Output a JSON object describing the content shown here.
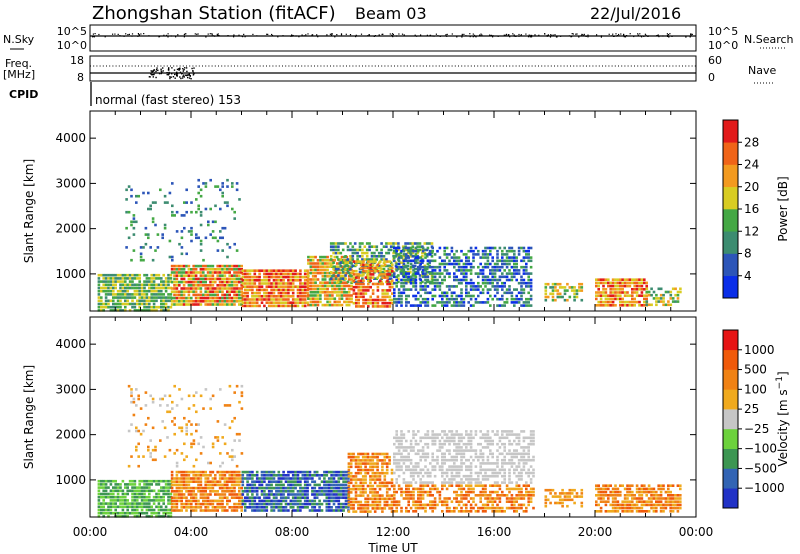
{
  "header": {
    "station": "Zhongshan Station (fitACF)",
    "beam": "Beam 03",
    "date": "22/Jul/2016"
  },
  "status_panels": {
    "nsky_label": "N.Sky",
    "nsky_ticks": [
      "10^5",
      "10^0"
    ],
    "nsearch_label": "N.Search",
    "nsearch_ticks": [
      "10^5",
      "10^0"
    ],
    "freq_label": "Freq.",
    "freq_unit": "[MHz]",
    "freq_ticks": [
      "18",
      "8"
    ],
    "nave_label": "Nave",
    "nave_ticks": [
      "60",
      "0"
    ],
    "cpid_label": "CPID",
    "cpid_text": "normal (fast stereo) 153"
  },
  "chart_data": [
    {
      "type": "heatmap",
      "name": "power",
      "ylabel": "Slant Range [km]",
      "yticks": [
        "4000",
        "3000",
        "2000",
        "1000"
      ],
      "ylim": [
        180,
        4600
      ],
      "colorbar_label": "Power [dB]",
      "colorbar_ticks": [
        "28",
        "24",
        "20",
        "16",
        "12",
        "8",
        "4"
      ],
      "colors": [
        "#0a2ee8",
        "#2c55b8",
        "#3c8c70",
        "#44a844",
        "#d8cc22",
        "#f39a1f",
        "#f06418",
        "#e21a1a"
      ],
      "scatter_regions": [
        {
          "x": [
            0.3,
            3.2
          ],
          "y": [
            200,
            1000
          ],
          "level": [
            2,
            4
          ],
          "density": 0.85
        },
        {
          "x": [
            3.2,
            6.0
          ],
          "y": [
            300,
            1200
          ],
          "level": [
            3,
            7
          ],
          "density": 0.9
        },
        {
          "x": [
            6.0,
            8.6
          ],
          "y": [
            300,
            1100
          ],
          "level": [
            4,
            7
          ],
          "density": 0.9
        },
        {
          "x": [
            8.6,
            10.4
          ],
          "y": [
            300,
            1400
          ],
          "level": [
            3,
            6
          ],
          "density": 0.85
        },
        {
          "x": [
            9.5,
            13.5
          ],
          "y": [
            800,
            1700
          ],
          "level": [
            1,
            4
          ],
          "density": 0.6
        },
        {
          "x": [
            10.4,
            12.0
          ],
          "y": [
            300,
            1300
          ],
          "level": [
            4,
            7
          ],
          "density": 0.7
        },
        {
          "x": [
            12.0,
            17.5
          ],
          "y": [
            300,
            1600
          ],
          "level": [
            0,
            3
          ],
          "density": 0.6
        },
        {
          "x": [
            18.0,
            19.5
          ],
          "y": [
            400,
            800
          ],
          "level": [
            2,
            5
          ],
          "density": 0.6
        },
        {
          "x": [
            20.0,
            22.0
          ],
          "y": [
            300,
            900
          ],
          "level": [
            4,
            7
          ],
          "density": 0.85
        },
        {
          "x": [
            22.0,
            23.4
          ],
          "y": [
            300,
            700
          ],
          "level": [
            2,
            5
          ],
          "density": 0.5
        },
        {
          "x": [
            1.4,
            6.0
          ],
          "y": [
            1300,
            3100
          ],
          "level": [
            1,
            3
          ],
          "density": 0.12
        }
      ]
    },
    {
      "type": "heatmap",
      "name": "velocity",
      "ylabel": "Slant Range [km]",
      "yticks": [
        "4000",
        "3000",
        "2000",
        "1000"
      ],
      "ylim": [
        180,
        4600
      ],
      "colorbar_label": "Velocity [m s^-1]",
      "colorbar_ticks": [
        "1000",
        "500",
        "100",
        "25",
        "−25",
        "−100",
        "−500",
        "−1000"
      ],
      "colors": [
        "#2132c6",
        "#3264b4",
        "#3c9652",
        "#6cd23c",
        "#c6c6c6",
        "#f0aa1e",
        "#f08214",
        "#f05a0a",
        "#e61414"
      ],
      "scatter_regions": [
        {
          "x": [
            0.3,
            3.2
          ],
          "y": [
            200,
            1000
          ],
          "level": [
            2,
            3
          ],
          "density": 0.85
        },
        {
          "x": [
            3.2,
            6.0
          ],
          "y": [
            300,
            1200
          ],
          "level": [
            5,
            7
          ],
          "density": 0.85
        },
        {
          "x": [
            6.0,
            10.2
          ],
          "y": [
            350,
            1200
          ],
          "level": [
            0,
            2
          ],
          "density": 0.8
        },
        {
          "x": [
            10.2,
            12.0
          ],
          "y": [
            300,
            1600
          ],
          "level": [
            5,
            7
          ],
          "density": 0.75
        },
        {
          "x": [
            12.0,
            17.6
          ],
          "y": [
            900,
            2100
          ],
          "level": [
            4,
            4
          ],
          "density": 0.55
        },
        {
          "x": [
            12.0,
            17.6
          ],
          "y": [
            300,
            900
          ],
          "level": [
            5,
            7
          ],
          "density": 0.6
        },
        {
          "x": [
            18.0,
            19.5
          ],
          "y": [
            400,
            800
          ],
          "level": [
            5,
            6
          ],
          "density": 0.6
        },
        {
          "x": [
            20.0,
            23.4
          ],
          "y": [
            300,
            900
          ],
          "level": [
            5,
            7
          ],
          "density": 0.8
        },
        {
          "x": [
            1.4,
            6.0
          ],
          "y": [
            1300,
            3100
          ],
          "level": [
            4,
            6
          ],
          "density": 0.12
        }
      ]
    }
  ],
  "x_axis": {
    "label": "Time UT",
    "ticks": [
      "00:00",
      "04:00",
      "08:00",
      "12:00",
      "16:00",
      "20:00",
      "00:00"
    ]
  }
}
